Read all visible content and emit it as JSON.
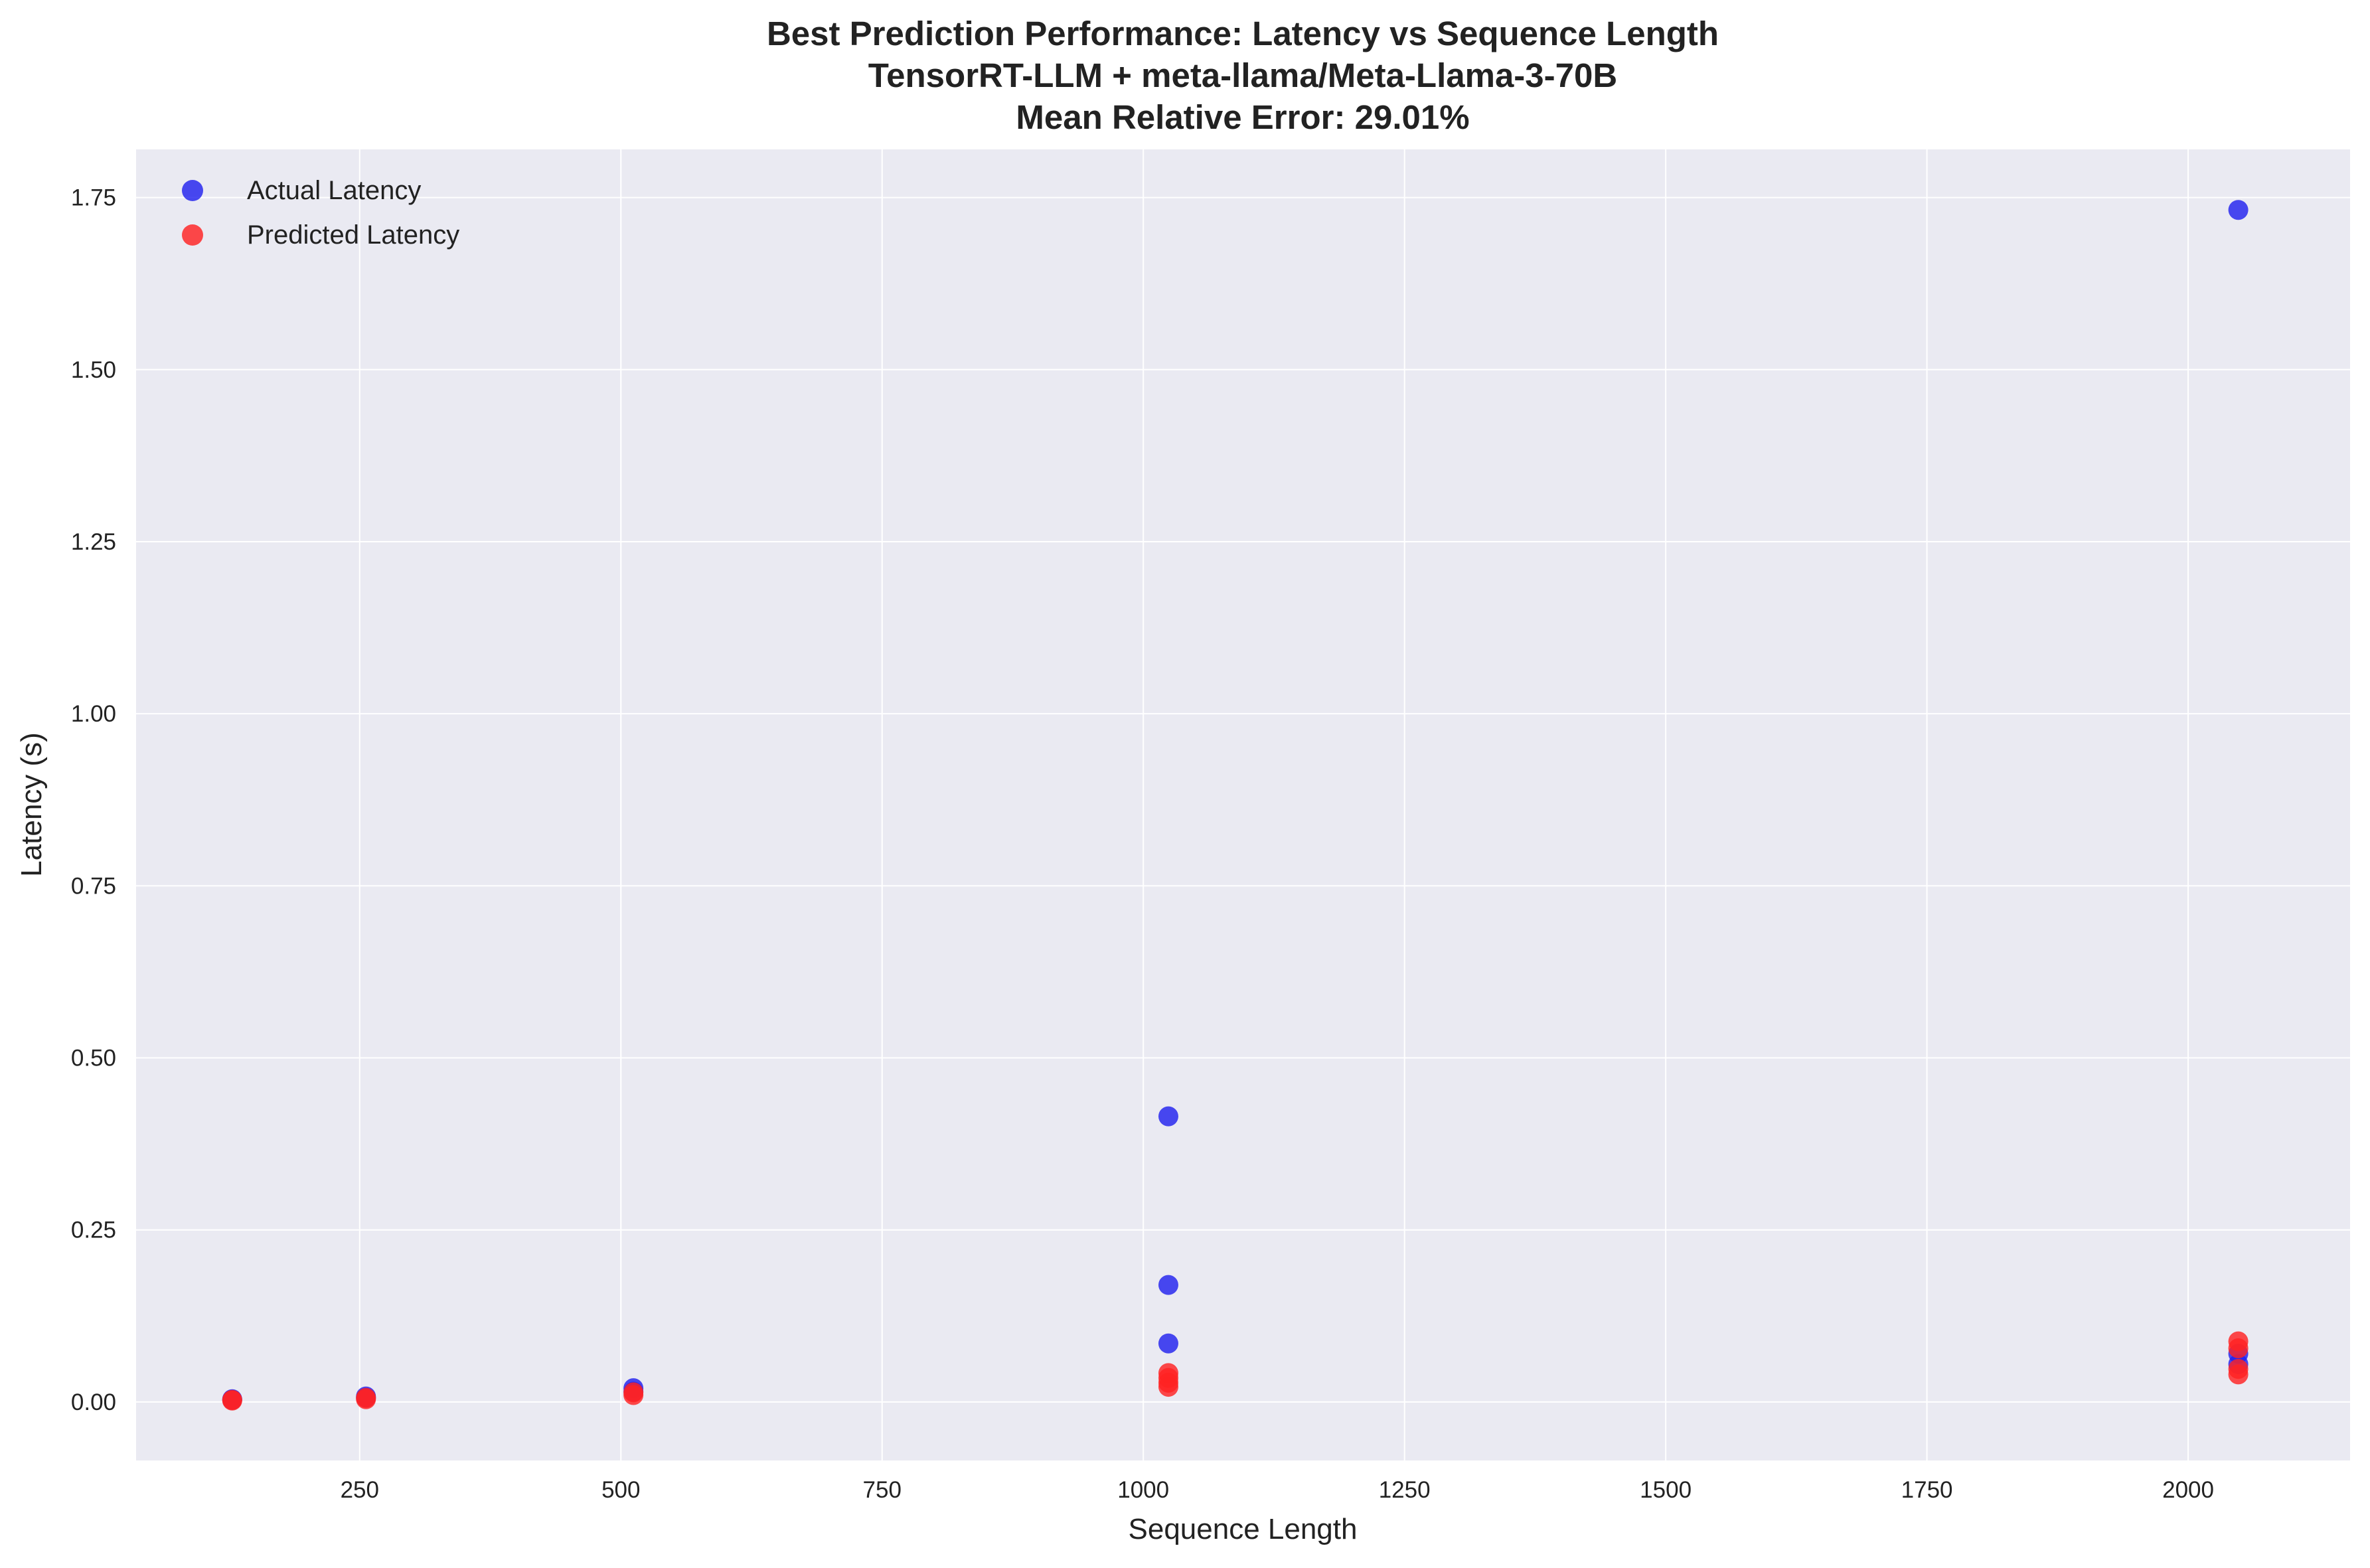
{
  "chart_data": {
    "type": "scatter",
    "title": "Best Prediction Performance: Latency vs Sequence Length",
    "subtitle_lines": [
      "TensorRT-LLM + meta-llama/Meta-Llama-3-70B",
      "Mean Relative Error: 29.01%"
    ],
    "xlabel": "Sequence Length",
    "ylabel": "Latency (s)",
    "xlim": [
      36,
      2155
    ],
    "ylim": [
      -0.085,
      1.82
    ],
    "xticks": [
      250,
      500,
      750,
      1000,
      1250,
      1500,
      1750,
      2000
    ],
    "xtick_labels": [
      "250",
      "500",
      "750",
      "1000",
      "1250",
      "1500",
      "1750",
      "2000"
    ],
    "yticks": [
      0.0,
      0.25,
      0.5,
      0.75,
      1.0,
      1.25,
      1.5,
      1.75
    ],
    "ytick_labels": [
      "0.00",
      "0.25",
      "0.50",
      "0.75",
      "1.00",
      "1.25",
      "1.50",
      "1.75"
    ],
    "grid": true,
    "background": "#eaeaf2",
    "legend_position": "top-left",
    "series": [
      {
        "name": "Actual Latency",
        "color": "#2222ee",
        "points": [
          {
            "x": 128,
            "y": 0.003
          },
          {
            "x": 128,
            "y": 0.004
          },
          {
            "x": 256,
            "y": 0.006
          },
          {
            "x": 256,
            "y": 0.008
          },
          {
            "x": 512,
            "y": 0.015
          },
          {
            "x": 512,
            "y": 0.02
          },
          {
            "x": 1024,
            "y": 0.085
          },
          {
            "x": 1024,
            "y": 0.17
          },
          {
            "x": 1024,
            "y": 0.415
          },
          {
            "x": 2048,
            "y": 0.055
          },
          {
            "x": 2048,
            "y": 0.07
          },
          {
            "x": 2048,
            "y": 1.732
          }
        ]
      },
      {
        "name": "Predicted Latency",
        "color": "#ff2222",
        "points": [
          {
            "x": 128,
            "y": 0.002
          },
          {
            "x": 128,
            "y": 0.003
          },
          {
            "x": 256,
            "y": 0.004
          },
          {
            "x": 256,
            "y": 0.006
          },
          {
            "x": 512,
            "y": 0.01
          },
          {
            "x": 512,
            "y": 0.014
          },
          {
            "x": 1024,
            "y": 0.022
          },
          {
            "x": 1024,
            "y": 0.028
          },
          {
            "x": 1024,
            "y": 0.035
          },
          {
            "x": 1024,
            "y": 0.042
          },
          {
            "x": 2048,
            "y": 0.04
          },
          {
            "x": 2048,
            "y": 0.048
          },
          {
            "x": 2048,
            "y": 0.078
          },
          {
            "x": 2048,
            "y": 0.088
          }
        ]
      }
    ]
  }
}
